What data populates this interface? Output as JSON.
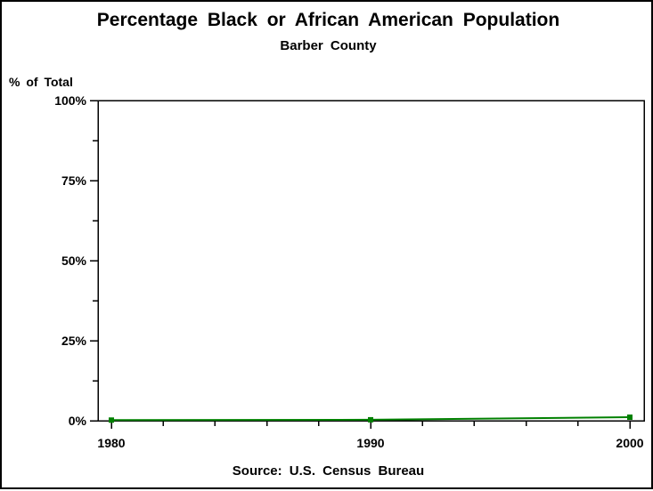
{
  "window": {
    "background_color": "#ffffff",
    "border_color": "#000000"
  },
  "header": {
    "title": "Percentage Black or African American Population",
    "subtitle": "Barber County"
  },
  "footer": {
    "source": "Source: U.S. Census Bureau"
  },
  "chart_data": {
    "type": "line",
    "title": "Percentage Black or African American Population",
    "subtitle": "Barber County",
    "xlabel": "",
    "ylabel": "% of Total",
    "x": [
      1980,
      1990,
      2000
    ],
    "values": [
      0.2,
      0.3,
      1.1
    ],
    "x_tick_labels": [
      "1980",
      "1990",
      "2000"
    ],
    "x_minor_ticks": [
      1982,
      1984,
      1986,
      1988,
      1992,
      1994,
      1996,
      1998
    ],
    "y_tick_values": [
      0,
      25,
      50,
      75,
      100
    ],
    "y_tick_labels": [
      "0%",
      "25%",
      "50%",
      "75%",
      "100%"
    ],
    "y_minor_ticks": [
      12.5,
      37.5,
      62.5,
      87.5
    ],
    "xlim": [
      1979.5,
      2000.5
    ],
    "ylim": [
      0,
      100
    ],
    "grid": false,
    "legend": "none",
    "line_color": "#008000",
    "marker": "filled-square",
    "axis_color": "#000000",
    "source": "Source: U.S. Census Bureau"
  }
}
